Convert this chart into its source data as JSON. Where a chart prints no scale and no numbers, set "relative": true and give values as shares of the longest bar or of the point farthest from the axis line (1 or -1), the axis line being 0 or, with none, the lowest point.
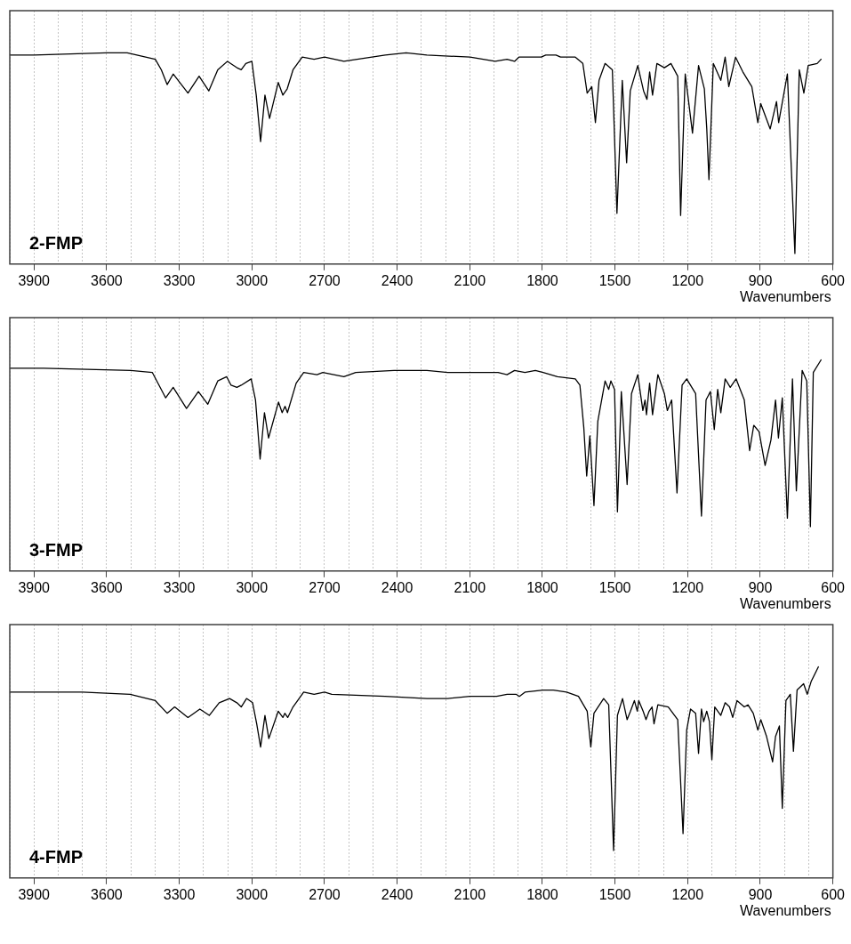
{
  "chart_data": [
    {
      "type": "line",
      "xlabel": "Wavenumbers",
      "relative": true,
      "grid": "x",
      "xlim": [
        4000,
        600
      ],
      "xticks": [
        {
          "value": 4000,
          "label": null
        },
        3900,
        {
          "value": 3800,
          "label": null
        },
        {
          "value": 3700,
          "label": null
        },
        3600,
        {
          "value": 3500,
          "label": null
        },
        {
          "value": 3400,
          "label": null
        },
        3300,
        {
          "value": 3200,
          "label": null
        },
        {
          "value": 3100,
          "label": null
        },
        3000,
        {
          "value": 2900,
          "label": null
        },
        {
          "value": 2800,
          "label": null
        },
        2700,
        {
          "value": 2600,
          "label": null
        },
        {
          "value": 2500,
          "label": null
        },
        2400,
        {
          "value": 2300,
          "label": null
        },
        {
          "value": 2200,
          "label": null
        },
        2100,
        {
          "value": 2000,
          "label": null
        },
        {
          "value": 1900,
          "label": null
        },
        1800,
        {
          "value": 1700,
          "label": null
        },
        {
          "value": 1600,
          "label": null
        },
        1500,
        {
          "value": 1400,
          "label": null
        },
        {
          "value": 1300,
          "label": null
        },
        1200,
        {
          "value": 1100,
          "label": null
        },
        {
          "value": 1000,
          "label": null
        },
        900,
        {
          "value": 800,
          "label": null
        },
        {
          "value": 700,
          "label": null
        },
        600
      ],
      "series": [
        {
          "name": "2-FMP",
          "color": "#000000",
          "x": [
            4000,
            3900,
            3600,
            3515,
            3399,
            3374,
            3350,
            3325,
            3264,
            3218,
            3178,
            3141,
            3101,
            3062,
            3044,
            3025,
            3000,
            2982,
            2964,
            2946,
            2927,
            2891,
            2872,
            2854,
            2830,
            2792,
            2743,
            2700,
            2620,
            2449,
            2363,
            2277,
            2099,
            1995,
            1946,
            1915,
            1897,
            1805,
            1786,
            1744,
            1725,
            1664,
            1633,
            1615,
            1596,
            1581,
            1566,
            1541,
            1511,
            1492,
            1470,
            1452,
            1437,
            1406,
            1382,
            1368,
            1357,
            1345,
            1327,
            1296,
            1269,
            1241,
            1229,
            1210,
            1180,
            1155,
            1131,
            1121,
            1112,
            1094,
            1063,
            1045,
            1030,
            1002,
            972,
            935,
            910,
            898,
            859,
            833,
            824,
            788,
            757,
            739,
            720,
            702,
            665,
            649
          ],
          "values": [
            0.99,
            0.99,
            1.0,
            1.0,
            0.97,
            0.92,
            0.85,
            0.9,
            0.81,
            0.89,
            0.82,
            0.92,
            0.96,
            0.93,
            0.92,
            0.95,
            0.96,
            0.8,
            0.58,
            0.8,
            0.69,
            0.86,
            0.8,
            0.83,
            0.92,
            0.98,
            0.97,
            0.98,
            0.96,
            0.99,
            1.0,
            0.99,
            0.98,
            0.96,
            0.97,
            0.96,
            0.98,
            0.98,
            0.99,
            0.99,
            0.98,
            0.98,
            0.95,
            0.81,
            0.84,
            0.67,
            0.87,
            0.95,
            0.92,
            0.24,
            0.87,
            0.48,
            0.82,
            0.94,
            0.82,
            0.78,
            0.91,
            0.8,
            0.95,
            0.93,
            0.95,
            0.89,
            0.23,
            0.9,
            0.62,
            0.94,
            0.83,
            0.64,
            0.4,
            0.95,
            0.87,
            0.98,
            0.84,
            0.98,
            0.91,
            0.84,
            0.67,
            0.76,
            0.64,
            0.77,
            0.67,
            0.9,
            0.05,
            0.92,
            0.81,
            0.94,
            0.95,
            0.97
          ]
        }
      ]
    },
    {
      "type": "line",
      "xlabel": "Wavenumbers",
      "relative": true,
      "grid": "x",
      "xlim": [
        4000,
        600
      ],
      "xticks": [
        {
          "value": 4000,
          "label": null
        },
        3900,
        {
          "value": 3800,
          "label": null
        },
        {
          "value": 3700,
          "label": null
        },
        3600,
        {
          "value": 3500,
          "label": null
        },
        {
          "value": 3400,
          "label": null
        },
        3300,
        {
          "value": 3200,
          "label": null
        },
        {
          "value": 3100,
          "label": null
        },
        3000,
        {
          "value": 2900,
          "label": null
        },
        {
          "value": 2800,
          "label": null
        },
        2700,
        {
          "value": 2600,
          "label": null
        },
        {
          "value": 2500,
          "label": null
        },
        2400,
        {
          "value": 2300,
          "label": null
        },
        {
          "value": 2200,
          "label": null
        },
        2100,
        {
          "value": 2000,
          "label": null
        },
        {
          "value": 1900,
          "label": null
        },
        1800,
        {
          "value": 1700,
          "label": null
        },
        {
          "value": 1600,
          "label": null
        },
        1500,
        {
          "value": 1400,
          "label": null
        },
        {
          "value": 1300,
          "label": null
        },
        1200,
        {
          "value": 1100,
          "label": null
        },
        {
          "value": 1000,
          "label": null
        },
        900,
        {
          "value": 800,
          "label": null
        },
        {
          "value": 700,
          "label": null
        },
        600
      ],
      "series": [
        {
          "name": "3-FMP",
          "color": "#000000",
          "x": [
            4000,
            3860,
            3500,
            3411,
            3356,
            3325,
            3270,
            3221,
            3182,
            3141,
            3104,
            3086,
            3062,
            3044,
            3003,
            2985,
            2966,
            2948,
            2931,
            2890,
            2875,
            2863,
            2853,
            2817,
            2786,
            2731,
            2707,
            2620,
            2571,
            2413,
            2277,
            2191,
            2099,
            1983,
            1946,
            1915,
            1872,
            1829,
            1797,
            1738,
            1664,
            1645,
            1629,
            1617,
            1604,
            1587,
            1571,
            1541,
            1526,
            1517,
            1502,
            1490,
            1474,
            1450,
            1432,
            1406,
            1385,
            1376,
            1370,
            1357,
            1345,
            1323,
            1296,
            1284,
            1266,
            1244,
            1223,
            1204,
            1167,
            1143,
            1124,
            1106,
            1090,
            1076,
            1063,
            1045,
            1024,
            1000,
            966,
            944,
            927,
            905,
            880,
            856,
            837,
            825,
            809,
            788,
            767,
            751,
            727,
            708,
            693,
            681,
            649
          ],
          "values": [
            0.96,
            0.96,
            0.95,
            0.94,
            0.82,
            0.87,
            0.77,
            0.85,
            0.79,
            0.9,
            0.92,
            0.88,
            0.87,
            0.88,
            0.91,
            0.81,
            0.53,
            0.75,
            0.63,
            0.8,
            0.75,
            0.78,
            0.75,
            0.89,
            0.94,
            0.93,
            0.94,
            0.92,
            0.94,
            0.95,
            0.95,
            0.94,
            0.94,
            0.94,
            0.93,
            0.95,
            0.94,
            0.95,
            0.94,
            0.92,
            0.91,
            0.88,
            0.68,
            0.45,
            0.64,
            0.31,
            0.71,
            0.9,
            0.86,
            0.9,
            0.86,
            0.28,
            0.85,
            0.41,
            0.84,
            0.93,
            0.76,
            0.81,
            0.74,
            0.89,
            0.74,
            0.93,
            0.84,
            0.76,
            0.81,
            0.37,
            0.88,
            0.91,
            0.84,
            0.26,
            0.81,
            0.85,
            0.67,
            0.86,
            0.75,
            0.91,
            0.87,
            0.91,
            0.81,
            0.57,
            0.69,
            0.66,
            0.5,
            0.62,
            0.81,
            0.63,
            0.82,
            0.25,
            0.91,
            0.38,
            0.95,
            0.9,
            0.21,
            0.94,
            1.0
          ]
        }
      ]
    },
    {
      "type": "line",
      "xlabel": "Wavenumbers",
      "relative": true,
      "grid": "x",
      "xlim": [
        4000,
        600
      ],
      "xticks": [
        {
          "value": 4000,
          "label": null
        },
        3900,
        {
          "value": 3800,
          "label": null
        },
        {
          "value": 3700,
          "label": null
        },
        3600,
        {
          "value": 3500,
          "label": null
        },
        {
          "value": 3400,
          "label": null
        },
        3300,
        {
          "value": 3200,
          "label": null
        },
        {
          "value": 3100,
          "label": null
        },
        3000,
        {
          "value": 2900,
          "label": null
        },
        {
          "value": 2800,
          "label": null
        },
        2700,
        {
          "value": 2600,
          "label": null
        },
        {
          "value": 2500,
          "label": null
        },
        2400,
        {
          "value": 2300,
          "label": null
        },
        {
          "value": 2200,
          "label": null
        },
        2100,
        {
          "value": 2000,
          "label": null
        },
        {
          "value": 1900,
          "label": null
        },
        1800,
        {
          "value": 1700,
          "label": null
        },
        {
          "value": 1600,
          "label": null
        },
        1500,
        {
          "value": 1400,
          "label": null
        },
        {
          "value": 1300,
          "label": null
        },
        1200,
        {
          "value": 1100,
          "label": null
        },
        {
          "value": 1000,
          "label": null
        },
        900,
        {
          "value": 800,
          "label": null
        },
        {
          "value": 700,
          "label": null
        },
        600
      ],
      "series": [
        {
          "name": "4-FMP",
          "color": "#000000",
          "x": [
            4000,
            3800,
            3700,
            3503,
            3399,
            3350,
            3319,
            3264,
            3215,
            3176,
            3135,
            3092,
            3062,
            3044,
            3022,
            2997,
            2980,
            2964,
            2946,
            2930,
            2891,
            2872,
            2864,
            2852,
            2830,
            2786,
            2743,
            2700,
            2670,
            2449,
            2277,
            2191,
            2099,
            1989,
            1946,
            1909,
            1895,
            1872,
            1797,
            1755,
            1700,
            1651,
            1615,
            1600,
            1587,
            1547,
            1526,
            1506,
            1490,
            1469,
            1450,
            1436,
            1420,
            1408,
            1402,
            1384,
            1372,
            1359,
            1347,
            1339,
            1323,
            1280,
            1241,
            1219,
            1204,
            1188,
            1167,
            1155,
            1143,
            1134,
            1121,
            1110,
            1100,
            1088,
            1063,
            1045,
            1027,
            1014,
            996,
            966,
            951,
            929,
            910,
            898,
            874,
            849,
            837,
            821,
            809,
            794,
            776,
            763,
            748,
            721,
            706,
            690,
            660
          ],
          "values": [
            0.88,
            0.88,
            0.88,
            0.87,
            0.84,
            0.78,
            0.81,
            0.76,
            0.8,
            0.77,
            0.83,
            0.85,
            0.83,
            0.81,
            0.85,
            0.83,
            0.73,
            0.62,
            0.77,
            0.66,
            0.79,
            0.76,
            0.78,
            0.76,
            0.81,
            0.88,
            0.87,
            0.88,
            0.87,
            0.86,
            0.85,
            0.85,
            0.86,
            0.86,
            0.87,
            0.87,
            0.86,
            0.88,
            0.89,
            0.89,
            0.88,
            0.86,
            0.79,
            0.62,
            0.78,
            0.85,
            0.82,
            0.13,
            0.77,
            0.85,
            0.75,
            0.79,
            0.84,
            0.79,
            0.84,
            0.79,
            0.75,
            0.79,
            0.81,
            0.73,
            0.82,
            0.81,
            0.75,
            0.21,
            0.7,
            0.8,
            0.78,
            0.59,
            0.8,
            0.74,
            0.79,
            0.74,
            0.56,
            0.81,
            0.77,
            0.83,
            0.81,
            0.76,
            0.84,
            0.81,
            0.82,
            0.78,
            0.7,
            0.75,
            0.67,
            0.55,
            0.67,
            0.72,
            0.33,
            0.84,
            0.87,
            0.6,
            0.89,
            0.92,
            0.87,
            0.93,
            1.0
          ]
        }
      ]
    }
  ]
}
